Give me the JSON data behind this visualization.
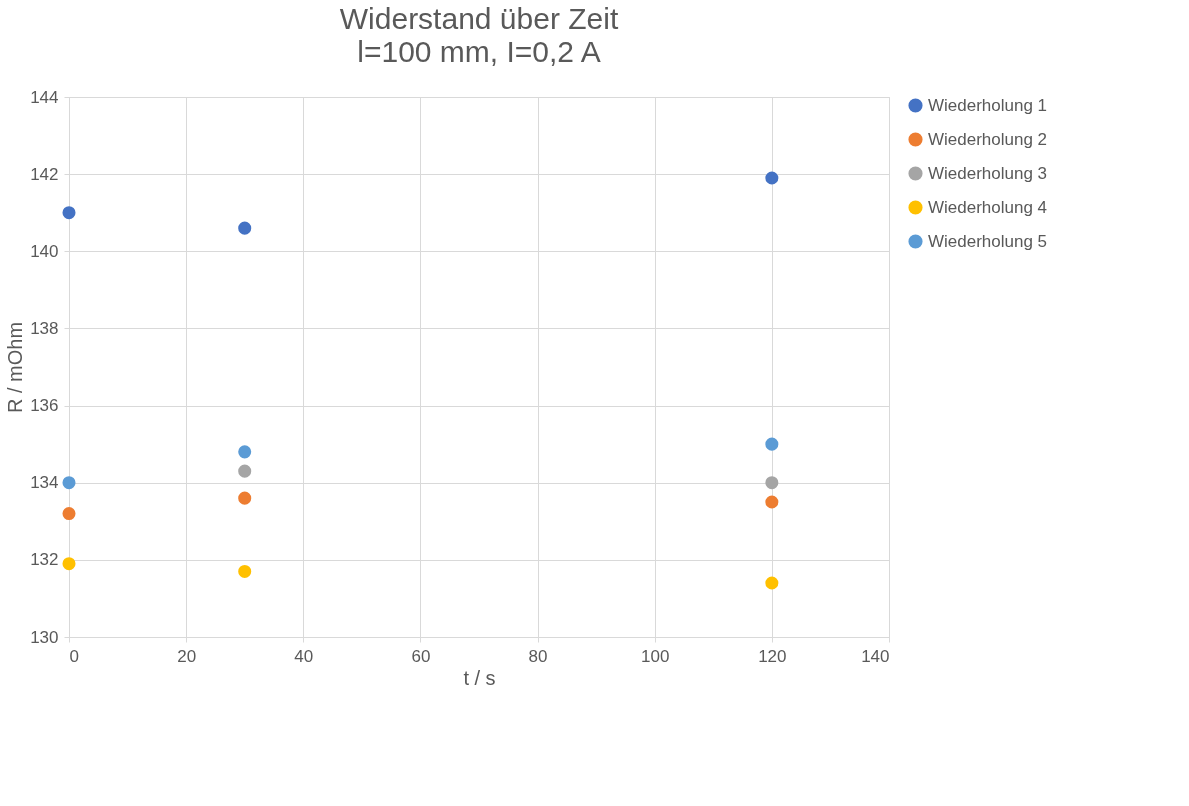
{
  "chart_data": {
    "type": "scatter",
    "title": "Widerstand über Zeit",
    "subtitle": "l=100 mm, I=0,2 A",
    "xlabel": "t / s",
    "ylabel": "R / mOhm",
    "x": [
      0,
      30,
      120
    ],
    "series": [
      {
        "name": "Wiederholung 1",
        "color": "#4472c4",
        "values": [
          141.0,
          140.6,
          141.9
        ]
      },
      {
        "name": "Wiederholung 2",
        "color": "#ed7d31",
        "values": [
          133.2,
          133.6,
          133.5
        ]
      },
      {
        "name": "Wiederholung 3",
        "color": "#a5a5a5",
        "values": [
          null,
          134.3,
          134.0
        ]
      },
      {
        "name": "Wiederholung 4",
        "color": "#ffc000",
        "values": [
          131.9,
          131.7,
          131.4
        ]
      },
      {
        "name": "Wiederholung 5",
        "color": "#5b9bd5",
        "values": [
          134.0,
          134.8,
          135.0
        ]
      }
    ],
    "xlim": [
      0,
      140
    ],
    "xticks": [
      0,
      20,
      40,
      60,
      80,
      100,
      120,
      140
    ],
    "ylim": [
      130,
      144
    ],
    "yticks": [
      130,
      132,
      134,
      136,
      138,
      140,
      142,
      144
    ],
    "grid": true,
    "legend": "right",
    "marker": "circle"
  }
}
